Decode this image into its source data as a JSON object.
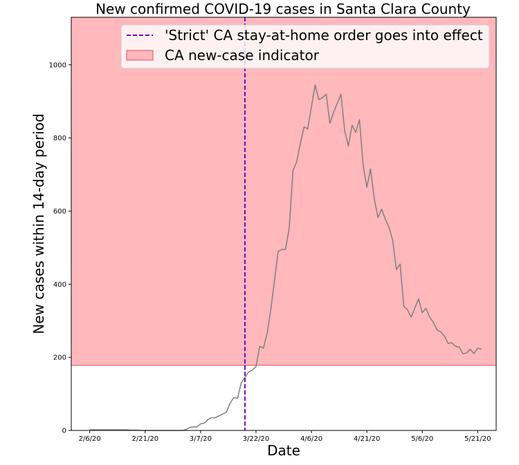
{
  "chart_data": {
    "type": "line",
    "title": "New confirmed COVID-19 cases in Santa Clara County",
    "xlabel": "Date",
    "ylabel": "New cases within 14-day period",
    "ylim": [
      0,
      1130
    ],
    "xlim": [
      "2020-02-01",
      "2020-05-26"
    ],
    "grid": false,
    "legend_position": "top-right",
    "x_ticks": [
      {
        "date": "2020-02-06",
        "label": "2/6/20"
      },
      {
        "date": "2020-02-21",
        "label": "2/21/20"
      },
      {
        "date": "2020-03-07",
        "label": "3/7/20"
      },
      {
        "date": "2020-03-22",
        "label": "3/22/20"
      },
      {
        "date": "2020-04-06",
        "label": "4/6/20"
      },
      {
        "date": "2020-04-21",
        "label": "4/21/20"
      },
      {
        "date": "2020-05-06",
        "label": "5/6/20"
      },
      {
        "date": "2020-05-21",
        "label": "5/21/20"
      }
    ],
    "y_ticks": [
      0,
      200,
      400,
      600,
      800,
      1000
    ],
    "indicator": {
      "label": "CA new-case indicator",
      "threshold": 178,
      "color": "#ffb8bc",
      "edge_color": "#d9534f"
    },
    "vline": {
      "label": "'Strict' CA stay-at-home order goes into effect",
      "date": "2020-03-19",
      "color": "#7a00c8"
    },
    "series": [
      {
        "color": "#808080",
        "x": [
          "2020-02-06",
          "2020-02-07",
          "2020-02-08",
          "2020-02-09",
          "2020-02-10",
          "2020-02-11",
          "2020-02-12",
          "2020-02-13",
          "2020-02-14",
          "2020-02-15",
          "2020-02-16",
          "2020-02-17",
          "2020-02-18",
          "2020-02-19",
          "2020-02-20",
          "2020-02-21",
          "2020-02-22",
          "2020-02-23",
          "2020-02-24",
          "2020-02-25",
          "2020-02-26",
          "2020-02-27",
          "2020-02-28",
          "2020-02-29",
          "2020-03-01",
          "2020-03-02",
          "2020-03-03",
          "2020-03-04",
          "2020-03-05",
          "2020-03-06",
          "2020-03-07",
          "2020-03-08",
          "2020-03-09",
          "2020-03-10",
          "2020-03-11",
          "2020-03-12",
          "2020-03-13",
          "2020-03-14",
          "2020-03-15",
          "2020-03-16",
          "2020-03-17",
          "2020-03-18",
          "2020-03-19",
          "2020-03-20",
          "2020-03-21",
          "2020-03-22",
          "2020-03-23",
          "2020-03-24",
          "2020-03-25",
          "2020-03-26",
          "2020-03-27",
          "2020-03-28",
          "2020-03-29",
          "2020-03-30",
          "2020-03-31",
          "2020-04-01",
          "2020-04-02",
          "2020-04-03",
          "2020-04-04",
          "2020-04-05",
          "2020-04-06",
          "2020-04-07",
          "2020-04-08",
          "2020-04-09",
          "2020-04-10",
          "2020-04-11",
          "2020-04-12",
          "2020-04-13",
          "2020-04-14",
          "2020-04-15",
          "2020-04-16",
          "2020-04-17",
          "2020-04-18",
          "2020-04-19",
          "2020-04-20",
          "2020-04-21",
          "2020-04-22",
          "2020-04-23",
          "2020-04-24",
          "2020-04-25",
          "2020-04-26",
          "2020-04-27",
          "2020-04-28",
          "2020-04-29",
          "2020-04-30",
          "2020-05-01",
          "2020-05-02",
          "2020-05-03",
          "2020-05-04",
          "2020-05-05",
          "2020-05-06",
          "2020-05-07",
          "2020-05-08",
          "2020-05-09",
          "2020-05-10",
          "2020-05-11",
          "2020-05-12",
          "2020-05-13",
          "2020-05-14",
          "2020-05-15",
          "2020-05-16",
          "2020-05-17",
          "2020-05-18",
          "2020-05-19",
          "2020-05-20",
          "2020-05-21",
          "2020-05-22"
        ],
        "values": [
          2,
          2,
          2,
          2,
          2,
          2,
          2,
          2,
          2,
          2,
          2,
          1,
          1,
          1,
          0,
          0,
          0,
          0,
          0,
          0,
          0,
          0,
          0,
          0,
          0,
          0,
          2,
          8,
          10,
          10,
          18,
          20,
          30,
          35,
          35,
          40,
          45,
          50,
          75,
          90,
          88,
          130,
          145,
          160,
          165,
          175,
          230,
          225,
          265,
          330,
          410,
          490,
          495,
          495,
          555,
          710,
          735,
          785,
          830,
          825,
          885,
          945,
          905,
          910,
          920,
          840,
          870,
          895,
          920,
          820,
          778,
          835,
          815,
          850,
          725,
          665,
          715,
          635,
          582,
          605,
          578,
          555,
          520,
          440,
          455,
          340,
          330,
          310,
          335,
          360,
          322,
          334,
          310,
          296,
          275,
          270,
          258,
          238,
          240,
          230,
          228,
          210,
          212,
          222,
          210,
          225,
          222
        ]
      }
    ]
  }
}
